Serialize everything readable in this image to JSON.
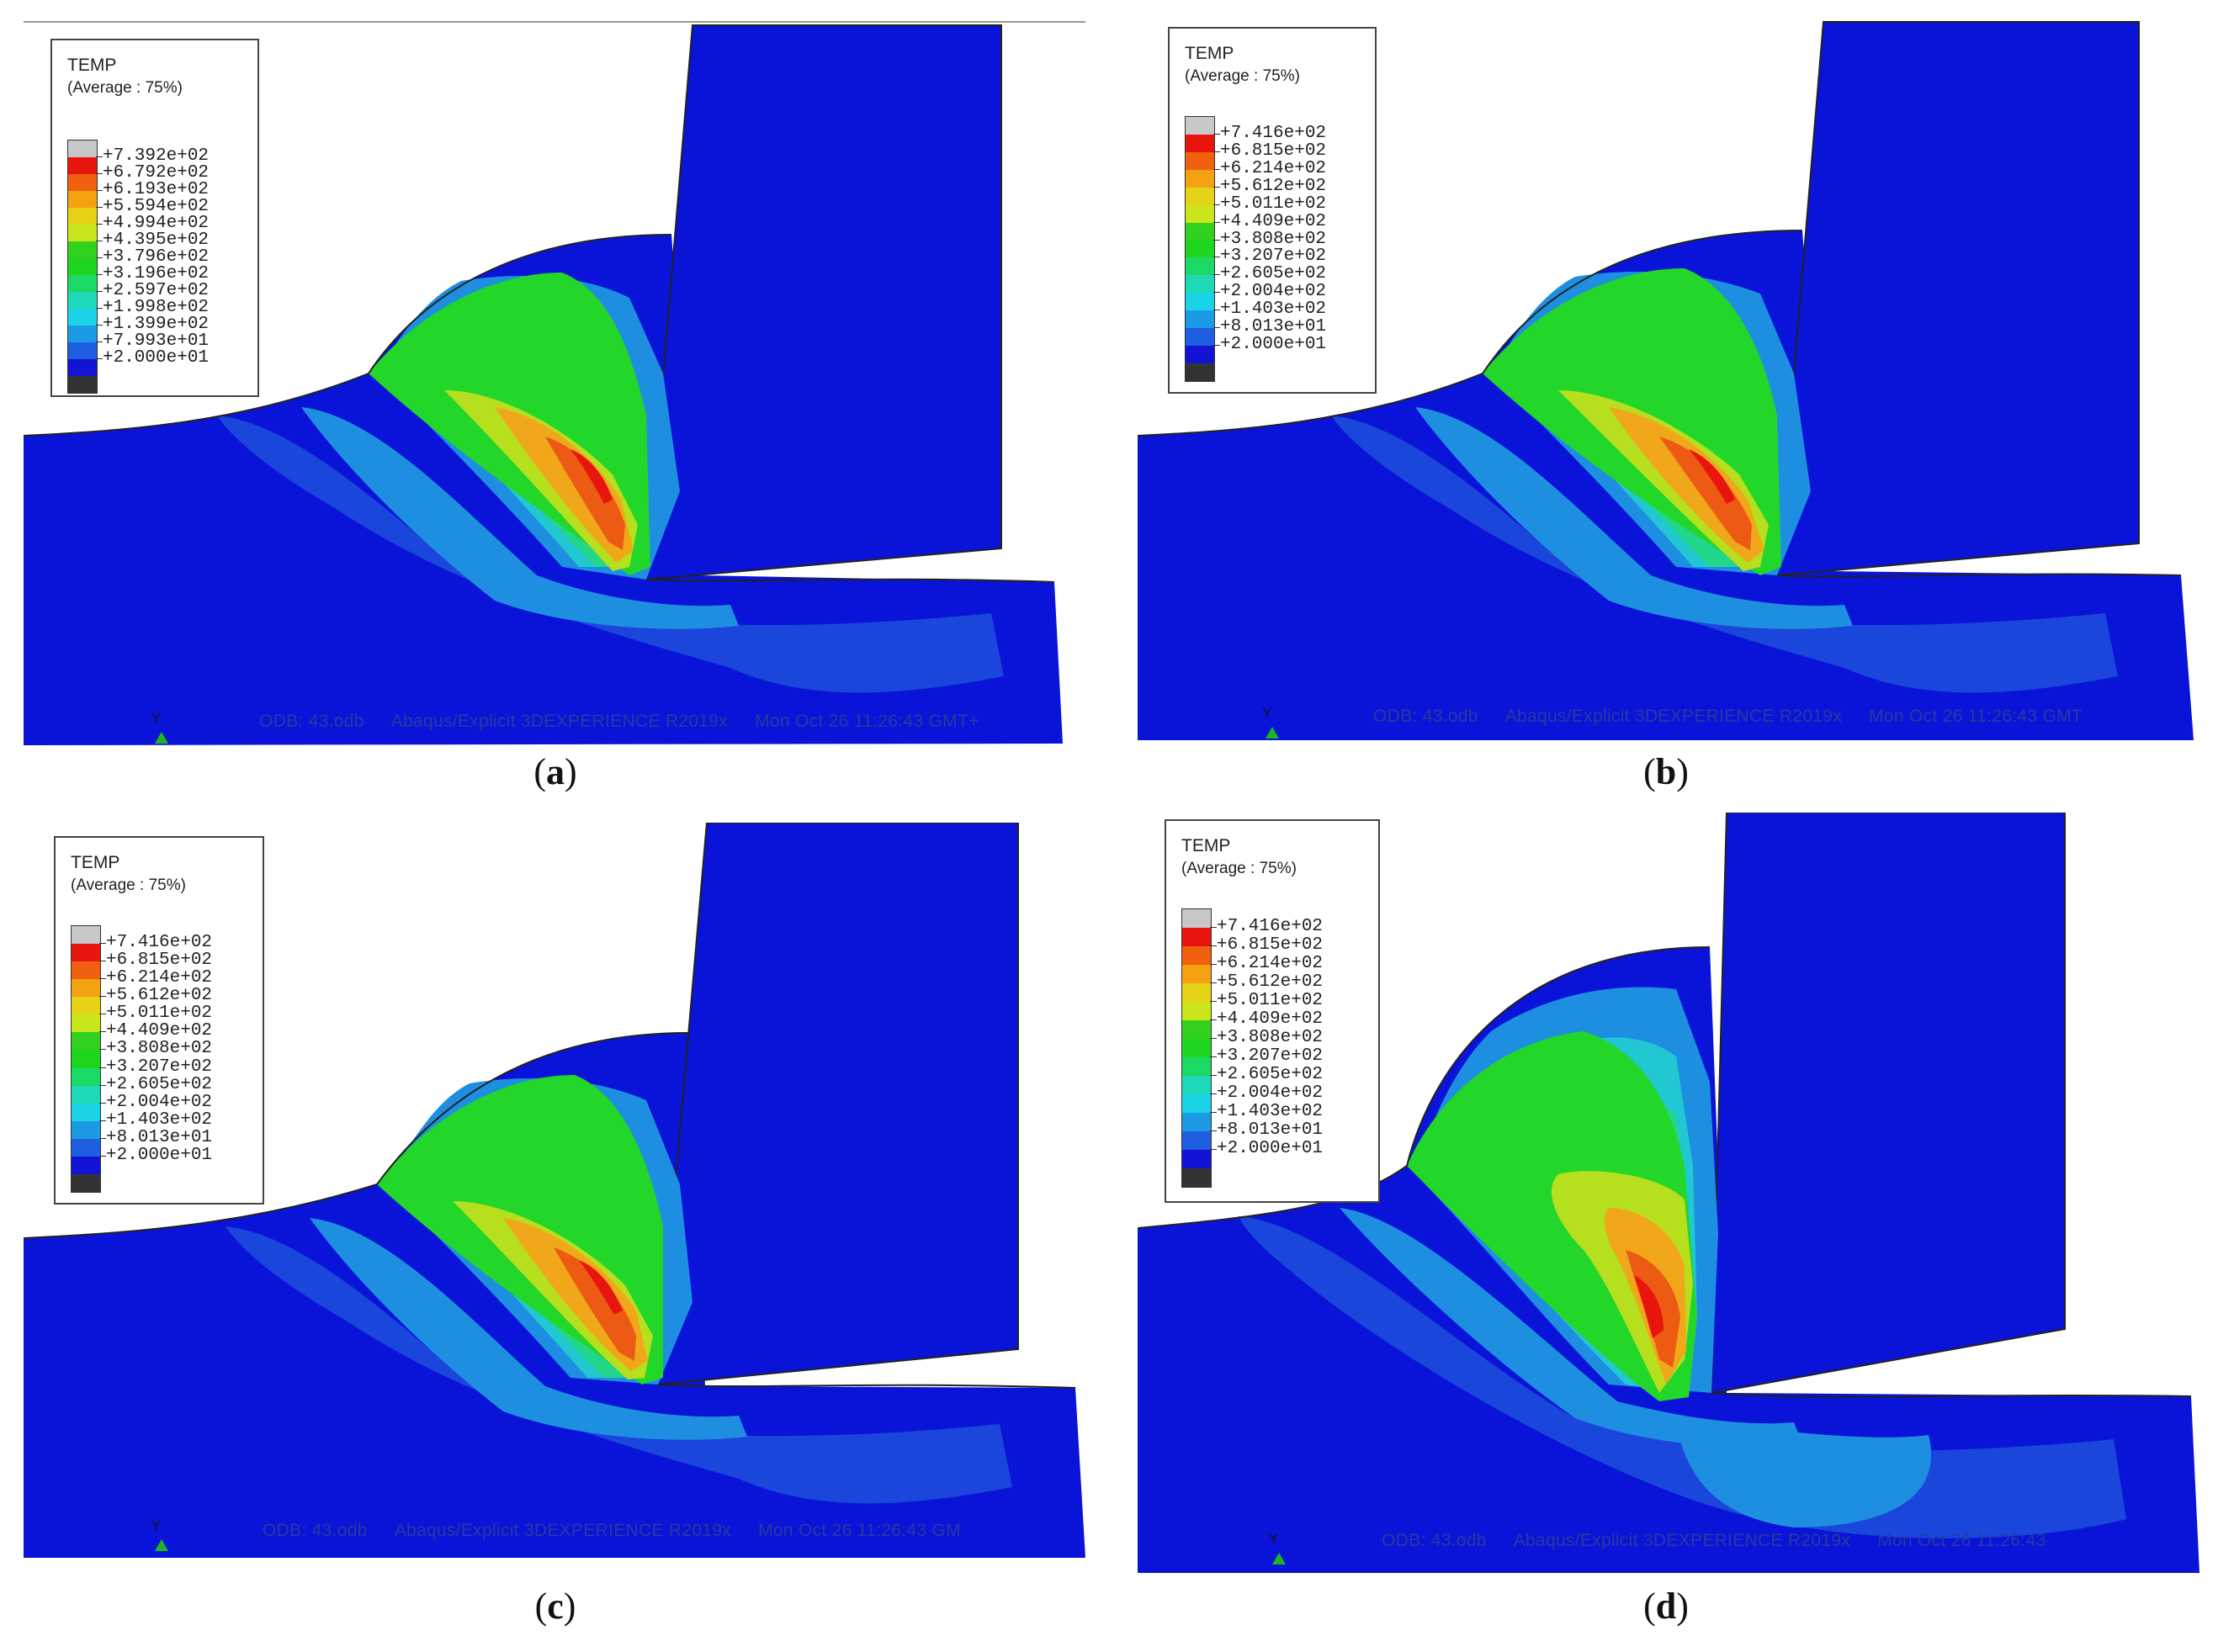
{
  "legend": {
    "variable": "TEMP",
    "subtitle": "(Average : 75%)"
  },
  "colors": {
    "workpiece_base": "#0a14d8",
    "tool": "#0a14d8",
    "band_1": "#1a46dc",
    "band_2": "#1e8fe0",
    "band_3": "#21c8d2",
    "band_4": "#22d68c",
    "band_5": "#23d62a",
    "band_6": "#b6e01e",
    "band_7": "#f0a81a",
    "band_8": "#ec5a14",
    "band_9": "#e8150e",
    "legend_swatches": [
      "#c8c8c8",
      "#e8150e",
      "#f0600f",
      "#f4a212",
      "#e6d317",
      "#c8e61b",
      "#33d11f",
      "#1fd51f",
      "#1bd965",
      "#1ed9b7",
      "#1bd3e6",
      "#1c9ae6",
      "#1e5ee0",
      "#1313d6",
      "#333333"
    ]
  },
  "panels": [
    {
      "id": "a",
      "caption": "a",
      "legend_values": [
        "+7.392e+02",
        "+6.792e+02",
        "+6.193e+02",
        "+5.594e+02",
        "+4.994e+02",
        "+4.395e+02",
        "+3.796e+02",
        "+3.196e+02",
        "+2.597e+02",
        "+1.998e+02",
        "+1.399e+02",
        "+7.993e+01",
        "+2.000e+01"
      ],
      "info": {
        "odb": "ODB: 43.odb",
        "solver": "Abaqus/Explicit 3DEXPERIENCE R2019x",
        "date": "Mon Oct 26 11:26:43 GMT+"
      },
      "triad_label": "Y"
    },
    {
      "id": "b",
      "caption": "b",
      "legend_values": [
        "+7.416e+02",
        "+6.815e+02",
        "+6.214e+02",
        "+5.612e+02",
        "+5.011e+02",
        "+4.409e+02",
        "+3.808e+02",
        "+3.207e+02",
        "+2.605e+02",
        "+2.004e+02",
        "+1.403e+02",
        "+8.013e+01",
        "+2.000e+01"
      ],
      "info": {
        "odb": "ODB: 43.odb",
        "solver": "Abaqus/Explicit 3DEXPERIENCE R2019x",
        "date": "Mon Oct 26 11:26:43 GMT"
      },
      "triad_label": "Y"
    },
    {
      "id": "c",
      "caption": "c",
      "legend_values": [
        "+7.416e+02",
        "+6.815e+02",
        "+6.214e+02",
        "+5.612e+02",
        "+5.011e+02",
        "+4.409e+02",
        "+3.808e+02",
        "+3.207e+02",
        "+2.605e+02",
        "+2.004e+02",
        "+1.403e+02",
        "+8.013e+01",
        "+2.000e+01"
      ],
      "info": {
        "odb": "ODB: 43.odb",
        "solver": "Abaqus/Explicit 3DEXPERIENCE R2019x",
        "date": "Mon Oct 26 11:26:43 GM"
      },
      "triad_label": "Y"
    },
    {
      "id": "d",
      "caption": "d",
      "legend_values": [
        "+7.416e+02",
        "+6.815e+02",
        "+6.214e+02",
        "+5.612e+02",
        "+5.011e+02",
        "+4.409e+02",
        "+3.808e+02",
        "+3.207e+02",
        "+2.605e+02",
        "+2.004e+02",
        "+1.403e+02",
        "+8.013e+01",
        "+2.000e+01"
      ],
      "info": {
        "odb": "ODB: 43.odb",
        "solver": "Abaqus/Explicit 3DEXPERIENCE R2019x",
        "date": "Mon Oct 26 11:26:43"
      },
      "triad_label": "Y"
    }
  ]
}
